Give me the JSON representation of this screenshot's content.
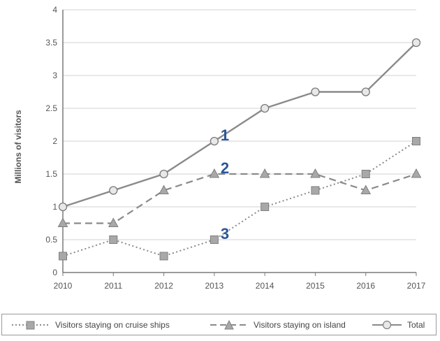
{
  "chart_data": {
    "type": "line",
    "x": [
      "2010",
      "2011",
      "2012",
      "2013",
      "2014",
      "2015",
      "2016",
      "2017"
    ],
    "ylabel": "Millions of visitors",
    "ylim": [
      0,
      4
    ],
    "yticks": [
      "0",
      "0.5",
      "1",
      "1.5",
      "2",
      "2.5",
      "3",
      "3.5",
      "4"
    ],
    "grid": "horizontal",
    "legend_position": "bottom",
    "series": [
      {
        "name": "Visitors staying on cruise ships",
        "marker": "square",
        "line": "dotted",
        "values": [
          0.25,
          0.5,
          0.25,
          0.5,
          1.0,
          1.25,
          1.5,
          2.0
        ]
      },
      {
        "name": "Visitors staying on island",
        "marker": "triangle",
        "line": "dashed",
        "values": [
          0.75,
          0.75,
          1.25,
          1.5,
          1.5,
          1.5,
          1.25,
          1.5
        ]
      },
      {
        "name": "Total",
        "marker": "circle",
        "line": "solid",
        "values": [
          1.0,
          1.25,
          1.5,
          2.0,
          2.5,
          2.75,
          2.75,
          3.5
        ]
      }
    ],
    "annotations": [
      {
        "text": "1",
        "series": "Total",
        "at": "2013"
      },
      {
        "text": "2",
        "series": "Visitors staying on island",
        "at": "2013"
      },
      {
        "text": "3",
        "series": "Visitors staying on cruise ships",
        "at": "2013"
      }
    ],
    "colors": {
      "line": "#8a8a8a",
      "marker_fill": "#a8a8a8",
      "circle_fill": "#e8e8e8",
      "grid": "#d2d2d2",
      "annotation": "#2b5797"
    }
  }
}
